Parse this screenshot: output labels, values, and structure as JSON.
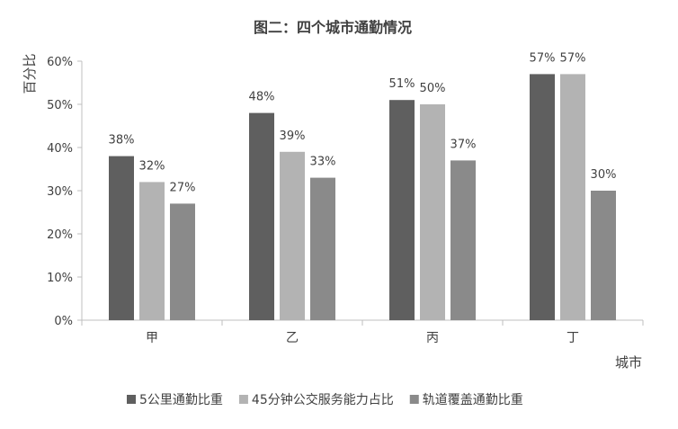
{
  "chart_data": {
    "type": "bar",
    "title": "图二：四个城市通勤情况",
    "xlabel": "城市",
    "ylabel": "百分比",
    "categories": [
      "甲",
      "乙",
      "丙",
      "丁"
    ],
    "series": [
      {
        "name": "5公里通勤比重",
        "values": [
          38,
          48,
          51,
          57
        ],
        "labels": [
          "38%",
          "48%",
          "51%",
          "57%"
        ],
        "color": "#5f5f5f"
      },
      {
        "name": "45分钟公交服务能力占比",
        "values": [
          32,
          39,
          50,
          57
        ],
        "labels": [
          "32%",
          "39%",
          "50%",
          "57%"
        ],
        "color": "#b3b3b3"
      },
      {
        "name": "轨道覆盖通勤比重",
        "values": [
          27,
          33,
          37,
          30
        ],
        "labels": [
          "27%",
          "33%",
          "37%",
          "30%"
        ],
        "color": "#8a8a8a"
      }
    ],
    "ylim": [
      0,
      60
    ],
    "yticks": [
      "0%",
      "10%",
      "20%",
      "30%",
      "40%",
      "50%",
      "60%"
    ],
    "grid": false,
    "legend_position": "bottom"
  }
}
